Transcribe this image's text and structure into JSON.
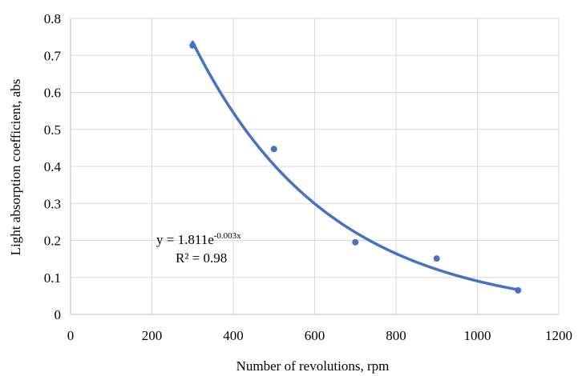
{
  "chart_data": {
    "type": "scatter",
    "xlabel": "Number of revolutions, rpm",
    "ylabel": "Light absorption coefficient, abs",
    "xlim": [
      0,
      1200
    ],
    "ylim": [
      0,
      0.8
    ],
    "x_ticks": [
      0,
      200,
      400,
      600,
      800,
      1000,
      1200
    ],
    "y_ticks": [
      0,
      0.1,
      0.2,
      0.3,
      0.4,
      0.5,
      0.6,
      0.7,
      0.8
    ],
    "x_tick_labels": [
      "0",
      "200",
      "400",
      "600",
      "800",
      "1000",
      "1200"
    ],
    "y_tick_labels": [
      "0",
      "0.1",
      "0.2",
      "0.3",
      "0.4",
      "0.5",
      "0.6",
      "0.7",
      "0.8"
    ],
    "grid": true,
    "legend": "none",
    "series": [
      {
        "x": [
          300,
          500,
          700,
          900,
          1100
        ],
        "y": [
          0.727,
          0.447,
          0.195,
          0.151,
          0.065
        ],
        "color": "#4472c4"
      }
    ],
    "trendline": {
      "type": "exponential",
      "a": 1.811,
      "b": -0.003,
      "x_range": [
        300,
        1100
      ],
      "color": "#4472c4",
      "equation_text": "y = 1.811e",
      "equation_exponent": "-0.003x",
      "r2_text": "R² = 0.98"
    }
  }
}
